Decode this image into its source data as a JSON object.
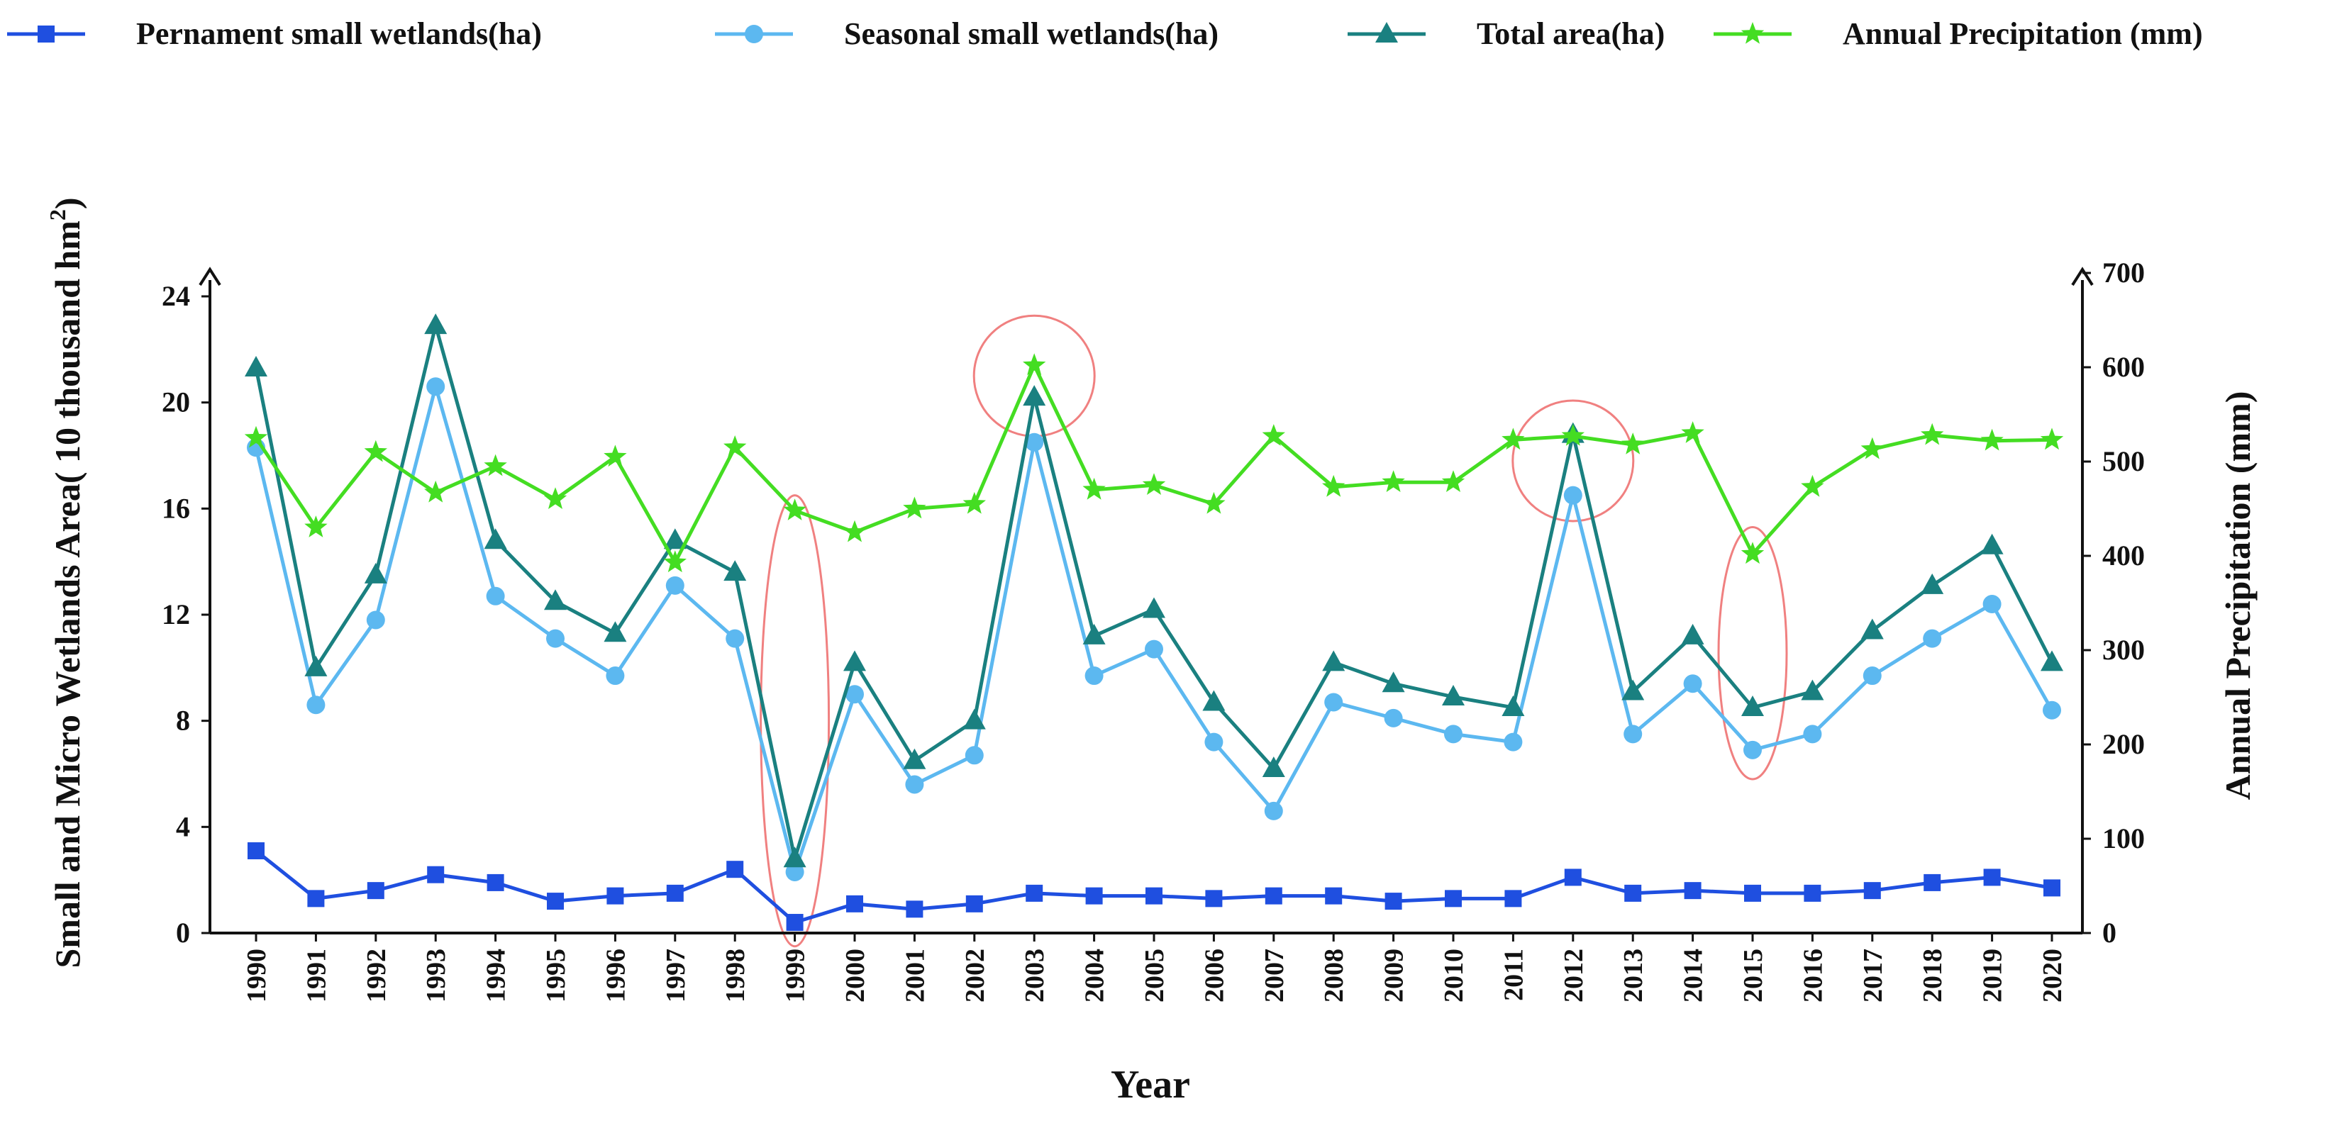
{
  "chart_data": {
    "type": "line",
    "title": "",
    "xlabel": "Year",
    "ylabel_left_main": "Small and Micro Wetlands Area( 10 thousand hm",
    "ylabel_left_sup": "2",
    "ylabel_left_end": ")",
    "ylabel_right": "Annual Precipitation (mm)",
    "ylim_left": [
      0,
      24
    ],
    "ylim_right": [
      0,
      700
    ],
    "yticks_left": [
      "0",
      "4",
      "8",
      "12",
      "16",
      "20",
      "24"
    ],
    "yticks_right": [
      "0",
      "100",
      "200",
      "300",
      "400",
      "500",
      "600",
      "700"
    ],
    "categories": [
      "1990",
      "1991",
      "1992",
      "1993",
      "1994",
      "1995",
      "1996",
      "1997",
      "1998",
      "1999",
      "2000",
      "2001",
      "2002",
      "2003",
      "2004",
      "2005",
      "2006",
      "2007",
      "2008",
      "2009",
      "2010",
      "2011",
      "2012",
      "2013",
      "2014",
      "2015",
      "2016",
      "2017",
      "2018",
      "2019",
      "2020"
    ],
    "grid": false,
    "legend_position": "top",
    "series": [
      {
        "name": "Pernament small wetlands(ha)",
        "axis": "left",
        "color": "#1f4fe0",
        "marker": "square",
        "values": [
          3.1,
          1.3,
          1.6,
          2.2,
          1.9,
          1.2,
          1.4,
          1.5,
          2.4,
          0.4,
          1.1,
          0.9,
          1.1,
          1.5,
          1.4,
          1.4,
          1.3,
          1.4,
          1.4,
          1.2,
          1.3,
          1.3,
          2.1,
          1.5,
          1.6,
          1.5,
          1.5,
          1.6,
          1.9,
          2.1,
          1.7
        ]
      },
      {
        "name": "Seasonal small wetlands(ha)",
        "axis": "left",
        "color": "#5cb8f0",
        "marker": "circle",
        "values": [
          18.3,
          8.6,
          11.8,
          20.6,
          12.7,
          11.1,
          9.7,
          13.1,
          11.1,
          2.3,
          9.0,
          5.6,
          6.7,
          18.5,
          9.7,
          10.7,
          7.2,
          4.6,
          8.7,
          8.1,
          7.5,
          7.2,
          16.5,
          7.5,
          9.4,
          6.9,
          7.5,
          9.7,
          11.1,
          12.4,
          8.4
        ]
      },
      {
        "name": "Total area(ha)",
        "axis": "left",
        "color": "#1a8080",
        "marker": "triangle",
        "values": [
          21.3,
          10.0,
          13.5,
          22.9,
          14.8,
          12.5,
          11.3,
          14.8,
          13.6,
          2.8,
          10.2,
          6.5,
          8.0,
          20.2,
          11.2,
          12.2,
          8.7,
          6.2,
          10.2,
          9.4,
          8.9,
          8.5,
          18.8,
          9.1,
          11.2,
          8.5,
          9.1,
          11.4,
          13.1,
          14.6,
          10.2
        ]
      },
      {
        "name": "Annual Precipitation (mm)",
        "axis": "right",
        "color": "#44dd22",
        "marker": "star",
        "values": [
          525,
          430,
          510,
          467,
          495,
          460,
          505,
          393,
          515,
          448,
          425,
          450,
          455,
          602,
          470,
          475,
          455,
          527,
          473,
          478,
          478,
          523,
          527,
          518,
          530,
          402,
          473,
          513,
          528,
          522,
          523
        ]
      }
    ],
    "annotations": [
      {
        "type": "ellipse",
        "color": "#f08080",
        "years": "1999",
        "axis": "left",
        "value_range": [
          -0.5,
          16.5
        ]
      },
      {
        "type": "circle",
        "color": "#f08080",
        "years": "2003",
        "axis": "left",
        "value_center": 21.0
      },
      {
        "type": "circle",
        "color": "#f08080",
        "years": "2012",
        "axis": "left",
        "value_center": 17.8
      },
      {
        "type": "ellipse",
        "color": "#f08080",
        "years": "2015",
        "axis": "left",
        "value_range": [
          5.8,
          15.3
        ]
      }
    ]
  }
}
